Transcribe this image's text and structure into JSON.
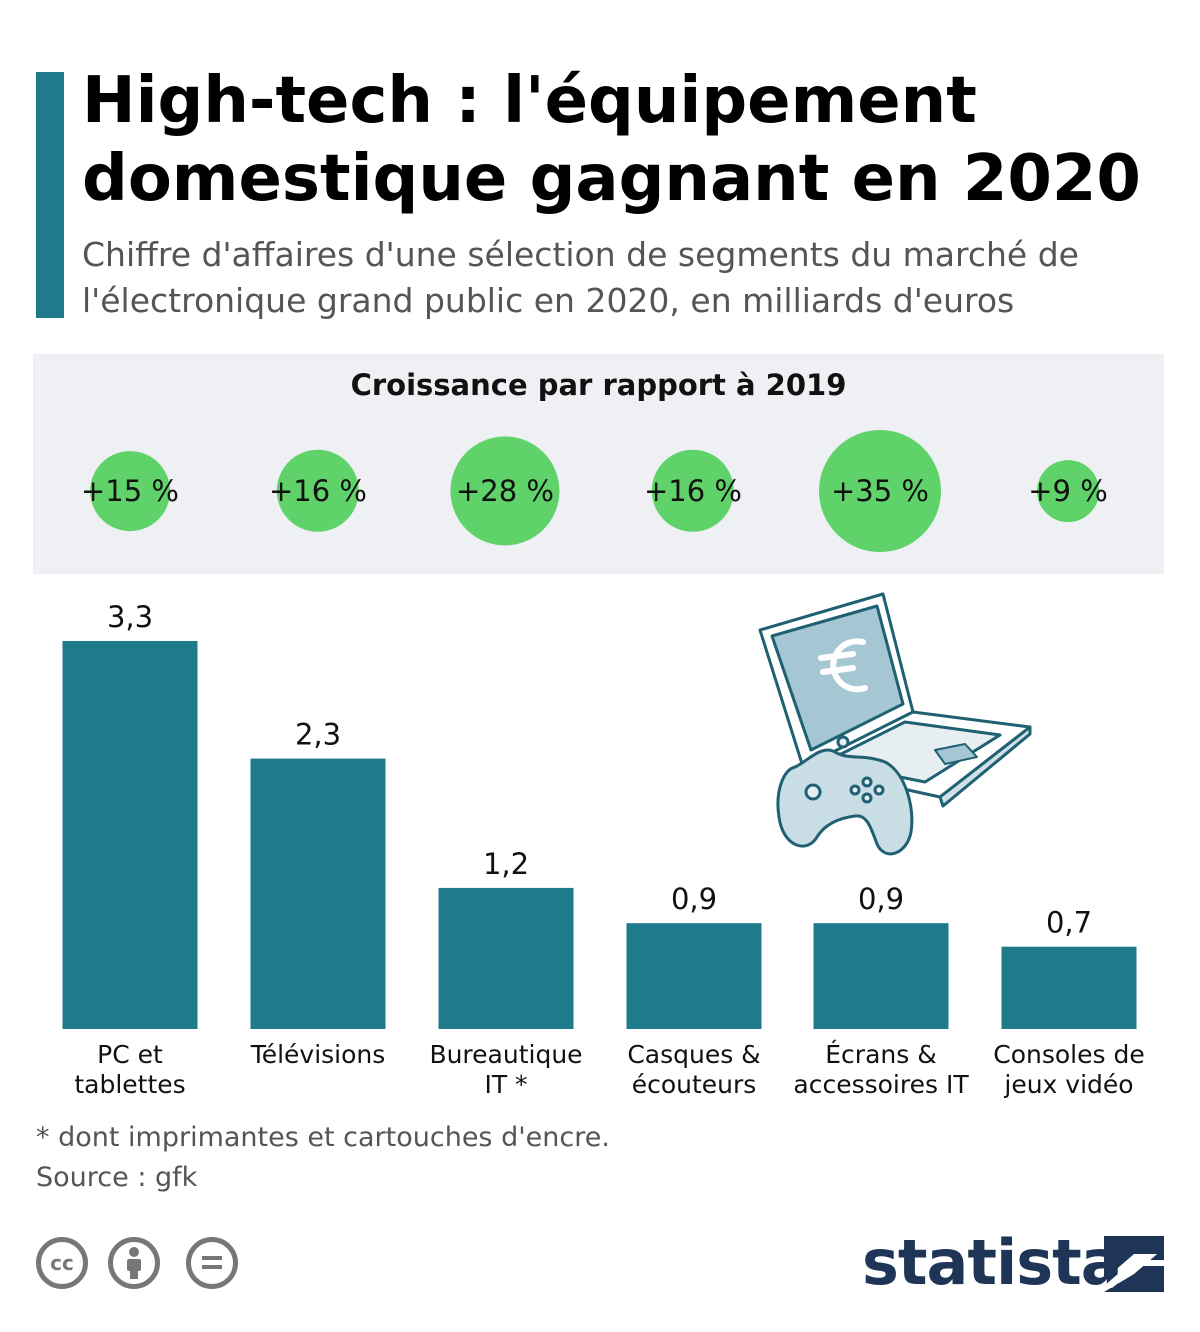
{
  "header": {
    "title": "High-tech : l'équipement domestique gagnant en 2020",
    "subtitle": "Chiffre d'affaires d'une sélection de segments du marché de l'électronique grand public en 2020, en milliards d'euros"
  },
  "growth": {
    "title": "Croissance par rapport à 2019",
    "labels": [
      "+15 %",
      "+16 %",
      "+28 %",
      "+16 %",
      "+35 %",
      "+9 %"
    ],
    "values": [
      15,
      16,
      28,
      16,
      35,
      9
    ],
    "color": "#5fd26a"
  },
  "chart_data": {
    "type": "bar",
    "categories": [
      [
        "PC et",
        "tablettes"
      ],
      [
        "Télévisions"
      ],
      [
        "Bureautique",
        "IT *"
      ],
      [
        "Casques &",
        "écouteurs"
      ],
      [
        "Écrans &",
        "accessoires IT"
      ],
      [
        "Consoles de",
        "jeux vidéo"
      ]
    ],
    "values": [
      3.3,
      2.3,
      1.2,
      0.9,
      0.9,
      0.7
    ],
    "value_labels": [
      "3,3",
      "2,3",
      "1,2",
      "0,9",
      "0,9",
      "0,7"
    ],
    "ylim": [
      0,
      3.3
    ],
    "grid": false,
    "bar_color": "#1f7a8c"
  },
  "footer": {
    "footnote": "* dont imprimantes et cartouches d'encre.",
    "source": "Source : gfk",
    "brand": "statista",
    "license_icons": [
      "cc-icon",
      "attribution-icon",
      "no-derivatives-icon"
    ],
    "cc_text": "cc"
  },
  "colors": {
    "accent": "#1f7a8c",
    "bubble": "#5fd26a",
    "brand": "#1e3557"
  }
}
